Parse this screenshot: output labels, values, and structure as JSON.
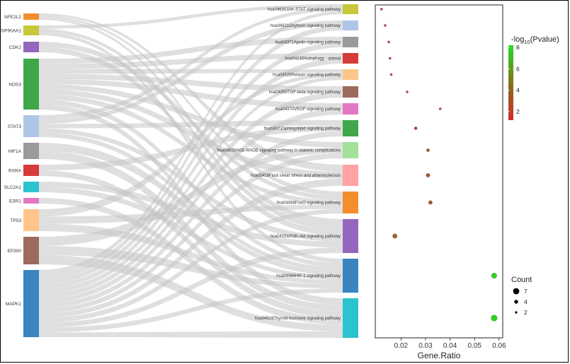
{
  "chart_data": {
    "type": "sankey-dotplot",
    "genes": [
      {
        "name": "NFE2L2",
        "color": "#f28e2b"
      },
      {
        "name": "HSP90AA1",
        "color": "#c7c73a"
      },
      {
        "name": "CDK2",
        "color": "#9467bd"
      },
      {
        "name": "NOS3",
        "color": "#3fa64a"
      },
      {
        "name": "STAT3",
        "color": "#aec7e8"
      },
      {
        "name": "HIF1A",
        "color": "#9a9a9a"
      },
      {
        "name": "RXRA",
        "color": "#d63a3a"
      },
      {
        "name": "SLC2A1",
        "color": "#2bc3cf"
      },
      {
        "name": "ESR1",
        "color": "#e377c2"
      },
      {
        "name": "TP53",
        "color": "#ffc58a"
      },
      {
        "name": "EP300",
        "color": "#9c6b5e"
      },
      {
        "name": "MAPK1",
        "color": "#3a84c0"
      }
    ],
    "pathways": [
      {
        "name": "hsa04630JAK-STAT signaling pathway",
        "color": "#c7c73a",
        "gene_ratio": 0.012,
        "neg_log10_p": 1.5,
        "count": 2
      },
      {
        "name": "hsa04921Oxytocin signaling pathway",
        "color": "#aec7e8",
        "gene_ratio": 0.0135,
        "neg_log10_p": 1.6,
        "count": 2
      },
      {
        "name": "hsa04371Apelin signaling pathway",
        "color": "#9a9a9a",
        "gene_ratio": 0.015,
        "neg_log10_p": 1.7,
        "count": 2
      },
      {
        "name": "hsa04140Autophagy - animal",
        "color": "#d63a3a",
        "gene_ratio": 0.0155,
        "neg_log10_p": 1.7,
        "count": 2
      },
      {
        "name": "hsa04926Relaxin signaling pathway",
        "color": "#ffc58a",
        "gene_ratio": 0.016,
        "neg_log10_p": 1.8,
        "count": 2
      },
      {
        "name": "hsa04350TGF-beta signaling pathway",
        "color": "#9c6b5e",
        "gene_ratio": 0.0225,
        "neg_log10_p": 1.9,
        "count": 2
      },
      {
        "name": "hsa04370VEGF signaling pathway",
        "color": "#e377c2",
        "gene_ratio": 0.036,
        "neg_log10_p": 1.8,
        "count": 2
      },
      {
        "name": "hsa04071Sphingolipid signaling pathway",
        "color": "#3fa64a",
        "gene_ratio": 0.026,
        "neg_log10_p": 2.1,
        "count": 3
      },
      {
        "name": "hsa04933AGE-RAGE signaling pathway in diabetic complications",
        "color": "#a4e09a",
        "gene_ratio": 0.031,
        "neg_log10_p": 2.3,
        "count": 3
      },
      {
        "name": "hsa05418Fluid shear stress and atherosclerosis",
        "color": "#ffa3a3",
        "gene_ratio": 0.031,
        "neg_log10_p": 2.6,
        "count": 4
      },
      {
        "name": "hsa04068FoxO signaling pathway",
        "color": "#f28e2b",
        "gene_ratio": 0.032,
        "neg_log10_p": 2.8,
        "count": 4
      },
      {
        "name": "hsa04151PI3K-Akt signaling pathway",
        "color": "#9467bd",
        "gene_ratio": 0.0175,
        "neg_log10_p": 3.6,
        "count": 5
      },
      {
        "name": "hsa04066HIF-1 signaling pathway",
        "color": "#3a84c0",
        "gene_ratio": 0.058,
        "neg_log10_p": 7.6,
        "count": 6
      },
      {
        "name": "hsa04919Thyroid hormone signaling pathway",
        "color": "#2bc3cf",
        "gene_ratio": 0.058,
        "neg_log10_p": 7.8,
        "count": 7
      }
    ],
    "links": [
      [
        0,
        9
      ],
      [
        0,
        10
      ],
      [
        0,
        11
      ],
      [
        1,
        0
      ],
      [
        1,
        11
      ],
      [
        1,
        12
      ],
      [
        2,
        10
      ],
      [
        2,
        11
      ],
      [
        3,
        2
      ],
      [
        3,
        3
      ],
      [
        3,
        4
      ],
      [
        3,
        5
      ],
      [
        3,
        6
      ],
      [
        3,
        8
      ],
      [
        3,
        9
      ],
      [
        3,
        10
      ],
      [
        3,
        12
      ],
      [
        3,
        13
      ],
      [
        4,
        0
      ],
      [
        4,
        1
      ],
      [
        4,
        7
      ],
      [
        4,
        11
      ],
      [
        4,
        12
      ],
      [
        5,
        12
      ],
      [
        5,
        13
      ],
      [
        6,
        13
      ],
      [
        6,
        7
      ],
      [
        7,
        12
      ],
      [
        7,
        11
      ],
      [
        8,
        13
      ],
      [
        9,
        4
      ],
      [
        9,
        12
      ],
      [
        9,
        10
      ],
      [
        10,
        8
      ],
      [
        10,
        12
      ],
      [
        10,
        13
      ],
      [
        11,
        0
      ],
      [
        11,
        1
      ],
      [
        11,
        2
      ],
      [
        11,
        3
      ],
      [
        11,
        4
      ],
      [
        11,
        5
      ],
      [
        11,
        6
      ],
      [
        11,
        7
      ],
      [
        11,
        8
      ],
      [
        11,
        9
      ],
      [
        11,
        10
      ],
      [
        11,
        11
      ],
      [
        11,
        12
      ],
      [
        11,
        13
      ]
    ],
    "xlabel": "Gene.Ratio",
    "x_ticks": [
      0.02,
      0.03,
      0.04,
      0.05,
      0.06
    ],
    "x_tick_labels": [
      "0.02",
      "0.03",
      "0.04",
      "0.05",
      "0.06"
    ],
    "xlim": [
      0.0095,
      0.0615
    ],
    "color_legend": {
      "title_prefix": "-log",
      "title_sub": "10",
      "title_suffix": "(Pvalue)",
      "ticks": [
        2,
        4,
        6,
        8
      ],
      "tick_labels": [
        "2",
        "4",
        "6",
        "8"
      ],
      "range": [
        1.2,
        8.2
      ],
      "low_color": "#d62a2a",
      "high_color": "#22dd22"
    },
    "size_legend": {
      "title": "Count",
      "entries": [
        7,
        4,
        2
      ],
      "entry_labels": [
        "7",
        "4",
        "2"
      ]
    }
  }
}
